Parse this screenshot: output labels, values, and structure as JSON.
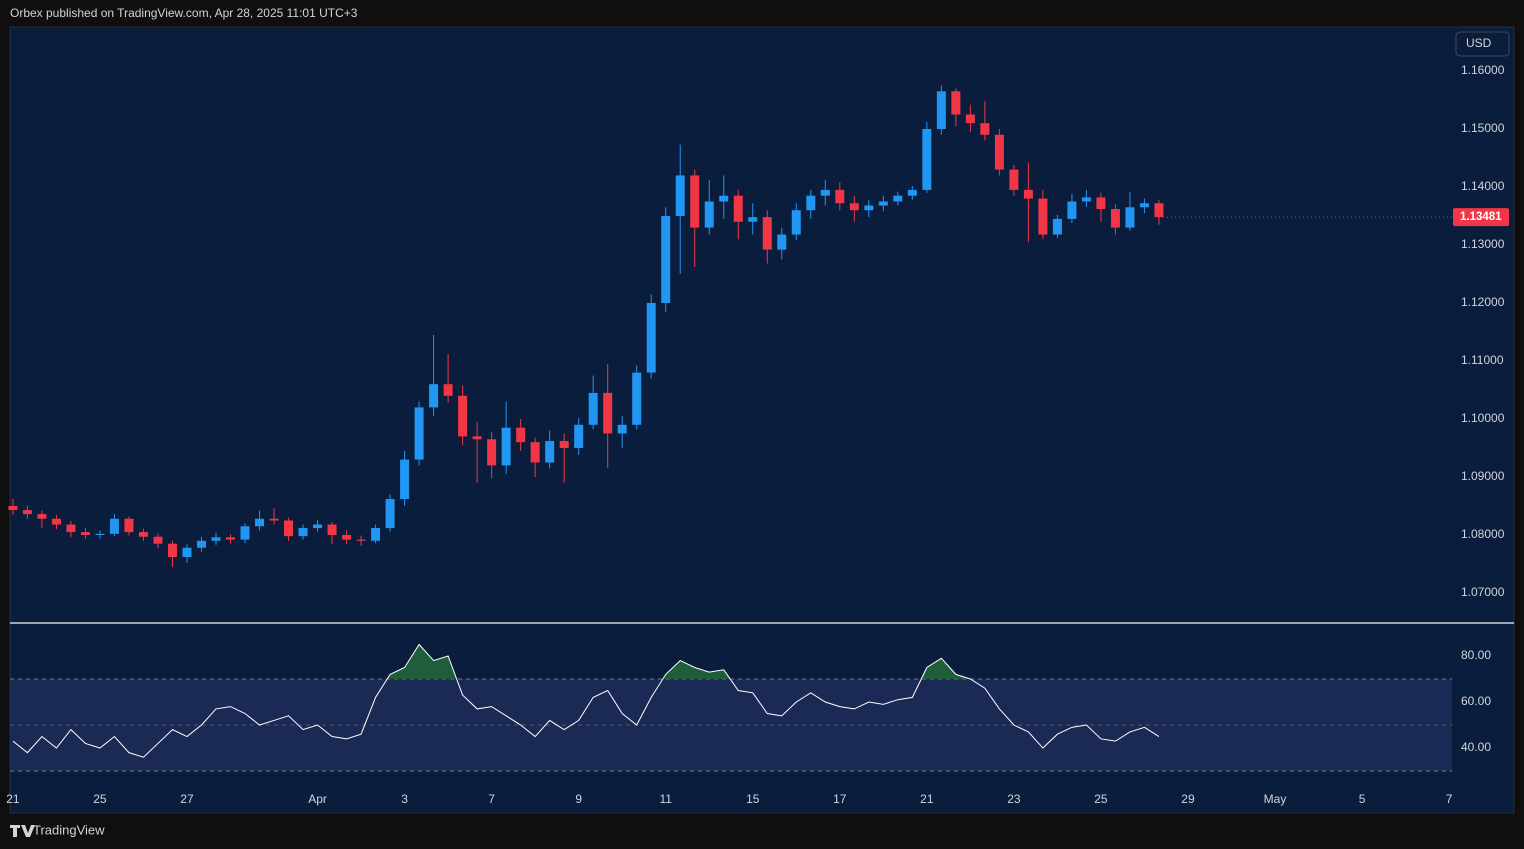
{
  "header": "Orbex published on TradingView.com, Apr 28, 2025 11:01 UTC+3",
  "footer": "TradingView",
  "chart_data": [
    {
      "type": "candlestick",
      "currency": "USD",
      "up_color": "#2196f3",
      "down_color": "#f23645",
      "open": [
        1.085,
        1.0843,
        1.0836,
        1.0828,
        1.0818,
        1.0805,
        1.08,
        1.0802,
        1.0828,
        1.0805,
        1.0797,
        1.0785,
        1.0762,
        1.0778,
        1.079,
        1.0796,
        1.0792,
        1.0815,
        1.0828,
        1.0825,
        1.0798,
        1.0812,
        1.0818,
        1.08,
        1.0792,
        1.079,
        1.0812,
        1.0862,
        1.093,
        1.102,
        1.106,
        1.104,
        1.097,
        1.0965,
        1.092,
        1.0985,
        1.096,
        1.0925,
        1.0962,
        1.095,
        1.099,
        1.1045,
        1.0975,
        1.099,
        1.108,
        1.12,
        1.135,
        1.142,
        1.133,
        1.1375,
        1.1385,
        1.134,
        1.1348,
        1.1292,
        1.1318,
        1.136,
        1.1385,
        1.1395,
        1.1372,
        1.136,
        1.1368,
        1.1375,
        1.1385,
        1.1395,
        1.15,
        1.1565,
        1.1525,
        1.151,
        1.149,
        1.143,
        1.1395,
        1.138,
        1.1318,
        1.1345,
        1.1375,
        1.1382,
        1.1362,
        1.133,
        1.1365,
        1.1372
      ],
      "high": [
        1.0862,
        1.0851,
        1.0842,
        1.0835,
        1.0824,
        1.0812,
        1.0808,
        1.0836,
        1.0832,
        1.0811,
        1.0803,
        1.079,
        1.0784,
        1.0797,
        1.0804,
        1.0801,
        1.082,
        1.0842,
        1.0846,
        1.083,
        1.0818,
        1.0826,
        1.0822,
        1.0808,
        1.0799,
        1.0818,
        1.087,
        1.0945,
        1.103,
        1.1145,
        1.1112,
        1.1058,
        1.0995,
        1.0978,
        1.103,
        1.1,
        1.0968,
        1.098,
        1.0975,
        1.1002,
        1.1075,
        1.1095,
        1.1005,
        1.1092,
        1.1215,
        1.1365,
        1.1473,
        1.143,
        1.1412,
        1.142,
        1.1395,
        1.1372,
        1.136,
        1.133,
        1.1372,
        1.1395,
        1.1412,
        1.1408,
        1.1385,
        1.1378,
        1.1385,
        1.1392,
        1.1402,
        1.1512,
        1.1575,
        1.157,
        1.1542,
        1.1548,
        1.15,
        1.1438,
        1.1442,
        1.1395,
        1.1352,
        1.1388,
        1.1395,
        1.139,
        1.137,
        1.1392,
        1.138,
        1.1378
      ],
      "low": [
        1.0835,
        1.0828,
        1.0812,
        1.081,
        1.0796,
        1.0793,
        1.0794,
        1.0798,
        1.0799,
        1.079,
        1.0777,
        1.0745,
        1.0752,
        1.0771,
        1.0783,
        1.0785,
        1.0786,
        1.0808,
        1.0818,
        1.079,
        1.0792,
        1.0806,
        1.0785,
        1.0784,
        1.0781,
        1.0786,
        1.0806,
        1.085,
        1.092,
        1.1005,
        1.1028,
        1.0955,
        1.089,
        1.0898,
        1.0905,
        1.0945,
        1.09,
        1.0915,
        1.089,
        1.0938,
        1.0982,
        1.0915,
        1.095,
        1.0982,
        1.107,
        1.1185,
        1.125,
        1.1262,
        1.1318,
        1.1345,
        1.131,
        1.1318,
        1.1268,
        1.1275,
        1.1308,
        1.1345,
        1.1368,
        1.136,
        1.134,
        1.1348,
        1.1358,
        1.1368,
        1.1378,
        1.139,
        1.149,
        1.1505,
        1.1495,
        1.148,
        1.142,
        1.1385,
        1.1305,
        1.131,
        1.1312,
        1.1338,
        1.1365,
        1.134,
        1.1318,
        1.1325,
        1.1355,
        1.1335
      ],
      "close": [
        1.0843,
        1.0836,
        1.0828,
        1.0818,
        1.0805,
        1.08,
        1.0802,
        1.0828,
        1.0805,
        1.0797,
        1.0785,
        1.0762,
        1.0778,
        1.079,
        1.0796,
        1.0792,
        1.0815,
        1.0828,
        1.0825,
        1.0798,
        1.0812,
        1.0818,
        1.08,
        1.0792,
        1.079,
        1.0812,
        1.0862,
        1.093,
        1.102,
        1.106,
        1.104,
        1.097,
        1.0965,
        1.092,
        1.0985,
        1.096,
        1.0925,
        1.0962,
        1.095,
        1.099,
        1.1045,
        1.0975,
        1.099,
        1.108,
        1.12,
        1.135,
        1.142,
        1.133,
        1.1375,
        1.1385,
        1.134,
        1.1348,
        1.1292,
        1.1318,
        1.136,
        1.1385,
        1.1395,
        1.1372,
        1.136,
        1.1368,
        1.1375,
        1.1385,
        1.1395,
        1.15,
        1.1565,
        1.1525,
        1.151,
        1.149,
        1.143,
        1.1395,
        1.138,
        1.1318,
        1.1345,
        1.1375,
        1.1382,
        1.1362,
        1.133,
        1.1365,
        1.1372,
        1.13481
      ],
      "xlim": [
        -0.2,
        99.2
      ],
      "xticks": [
        {
          "value": 0,
          "label": "21"
        },
        {
          "value": 6,
          "label": "25"
        },
        {
          "value": 12,
          "label": "27"
        },
        {
          "value": 21,
          "label": "Apr"
        },
        {
          "value": 27,
          "label": "3"
        },
        {
          "value": 33,
          "label": "7"
        },
        {
          "value": 39,
          "label": "9"
        },
        {
          "value": 45,
          "label": "11"
        },
        {
          "value": 51,
          "label": "15"
        },
        {
          "value": 57,
          "label": "17"
        },
        {
          "value": 63,
          "label": "21"
        },
        {
          "value": 69,
          "label": "23"
        },
        {
          "value": 75,
          "label": "25"
        },
        {
          "value": 81,
          "label": "29"
        },
        {
          "value": 87,
          "label": "May"
        },
        {
          "value": 93,
          "label": "5"
        },
        {
          "value": 99,
          "label": "7"
        }
      ],
      "ylim": [
        1.065,
        1.16741
      ],
      "yticks": [
        {
          "value": 1.07,
          "label": "1.07000"
        },
        {
          "value": 1.08,
          "label": "1.08000"
        },
        {
          "value": 1.09,
          "label": "1.09000"
        },
        {
          "value": 1.1,
          "label": "1.10000"
        },
        {
          "value": 1.11,
          "label": "1.11000"
        },
        {
          "value": 1.12,
          "label": "1.12000"
        },
        {
          "value": 1.13,
          "label": "1.13000"
        },
        {
          "value": 1.14,
          "label": "1.14000"
        },
        {
          "value": 1.15,
          "label": "1.15000"
        },
        {
          "value": 1.16,
          "label": "1.16000"
        }
      ]
    },
    {
      "type": "line",
      "color": "#ffffff",
      "band_color": "#1b2a55",
      "overbought_color": "#1f5e3a",
      "values": [
        43,
        38,
        45,
        40,
        48,
        42,
        40,
        45,
        38,
        36,
        42,
        48,
        45,
        50,
        57,
        58,
        55,
        50,
        52,
        54,
        48,
        50,
        45,
        44,
        46,
        62,
        72,
        75,
        85,
        78,
        80,
        63,
        57,
        58,
        54,
        50,
        45,
        52,
        48,
        52,
        62,
        65,
        55,
        50,
        62,
        72,
        78,
        75,
        73,
        74,
        65,
        64,
        55,
        54,
        60,
        64,
        60,
        58,
        57,
        60,
        59,
        61,
        62,
        75,
        79,
        72,
        70,
        66,
        57,
        50,
        47,
        40,
        46,
        49,
        50,
        44,
        43,
        47,
        49,
        45
      ],
      "bands": [
        30,
        70
      ],
      "midline": 50,
      "ylim": [
        12.2,
        93.9
      ],
      "yticks": [
        {
          "value": 40,
          "label": "40.00"
        },
        {
          "value": 60,
          "label": "60.00"
        },
        {
          "value": 80,
          "label": "80.00"
        }
      ]
    }
  ]
}
